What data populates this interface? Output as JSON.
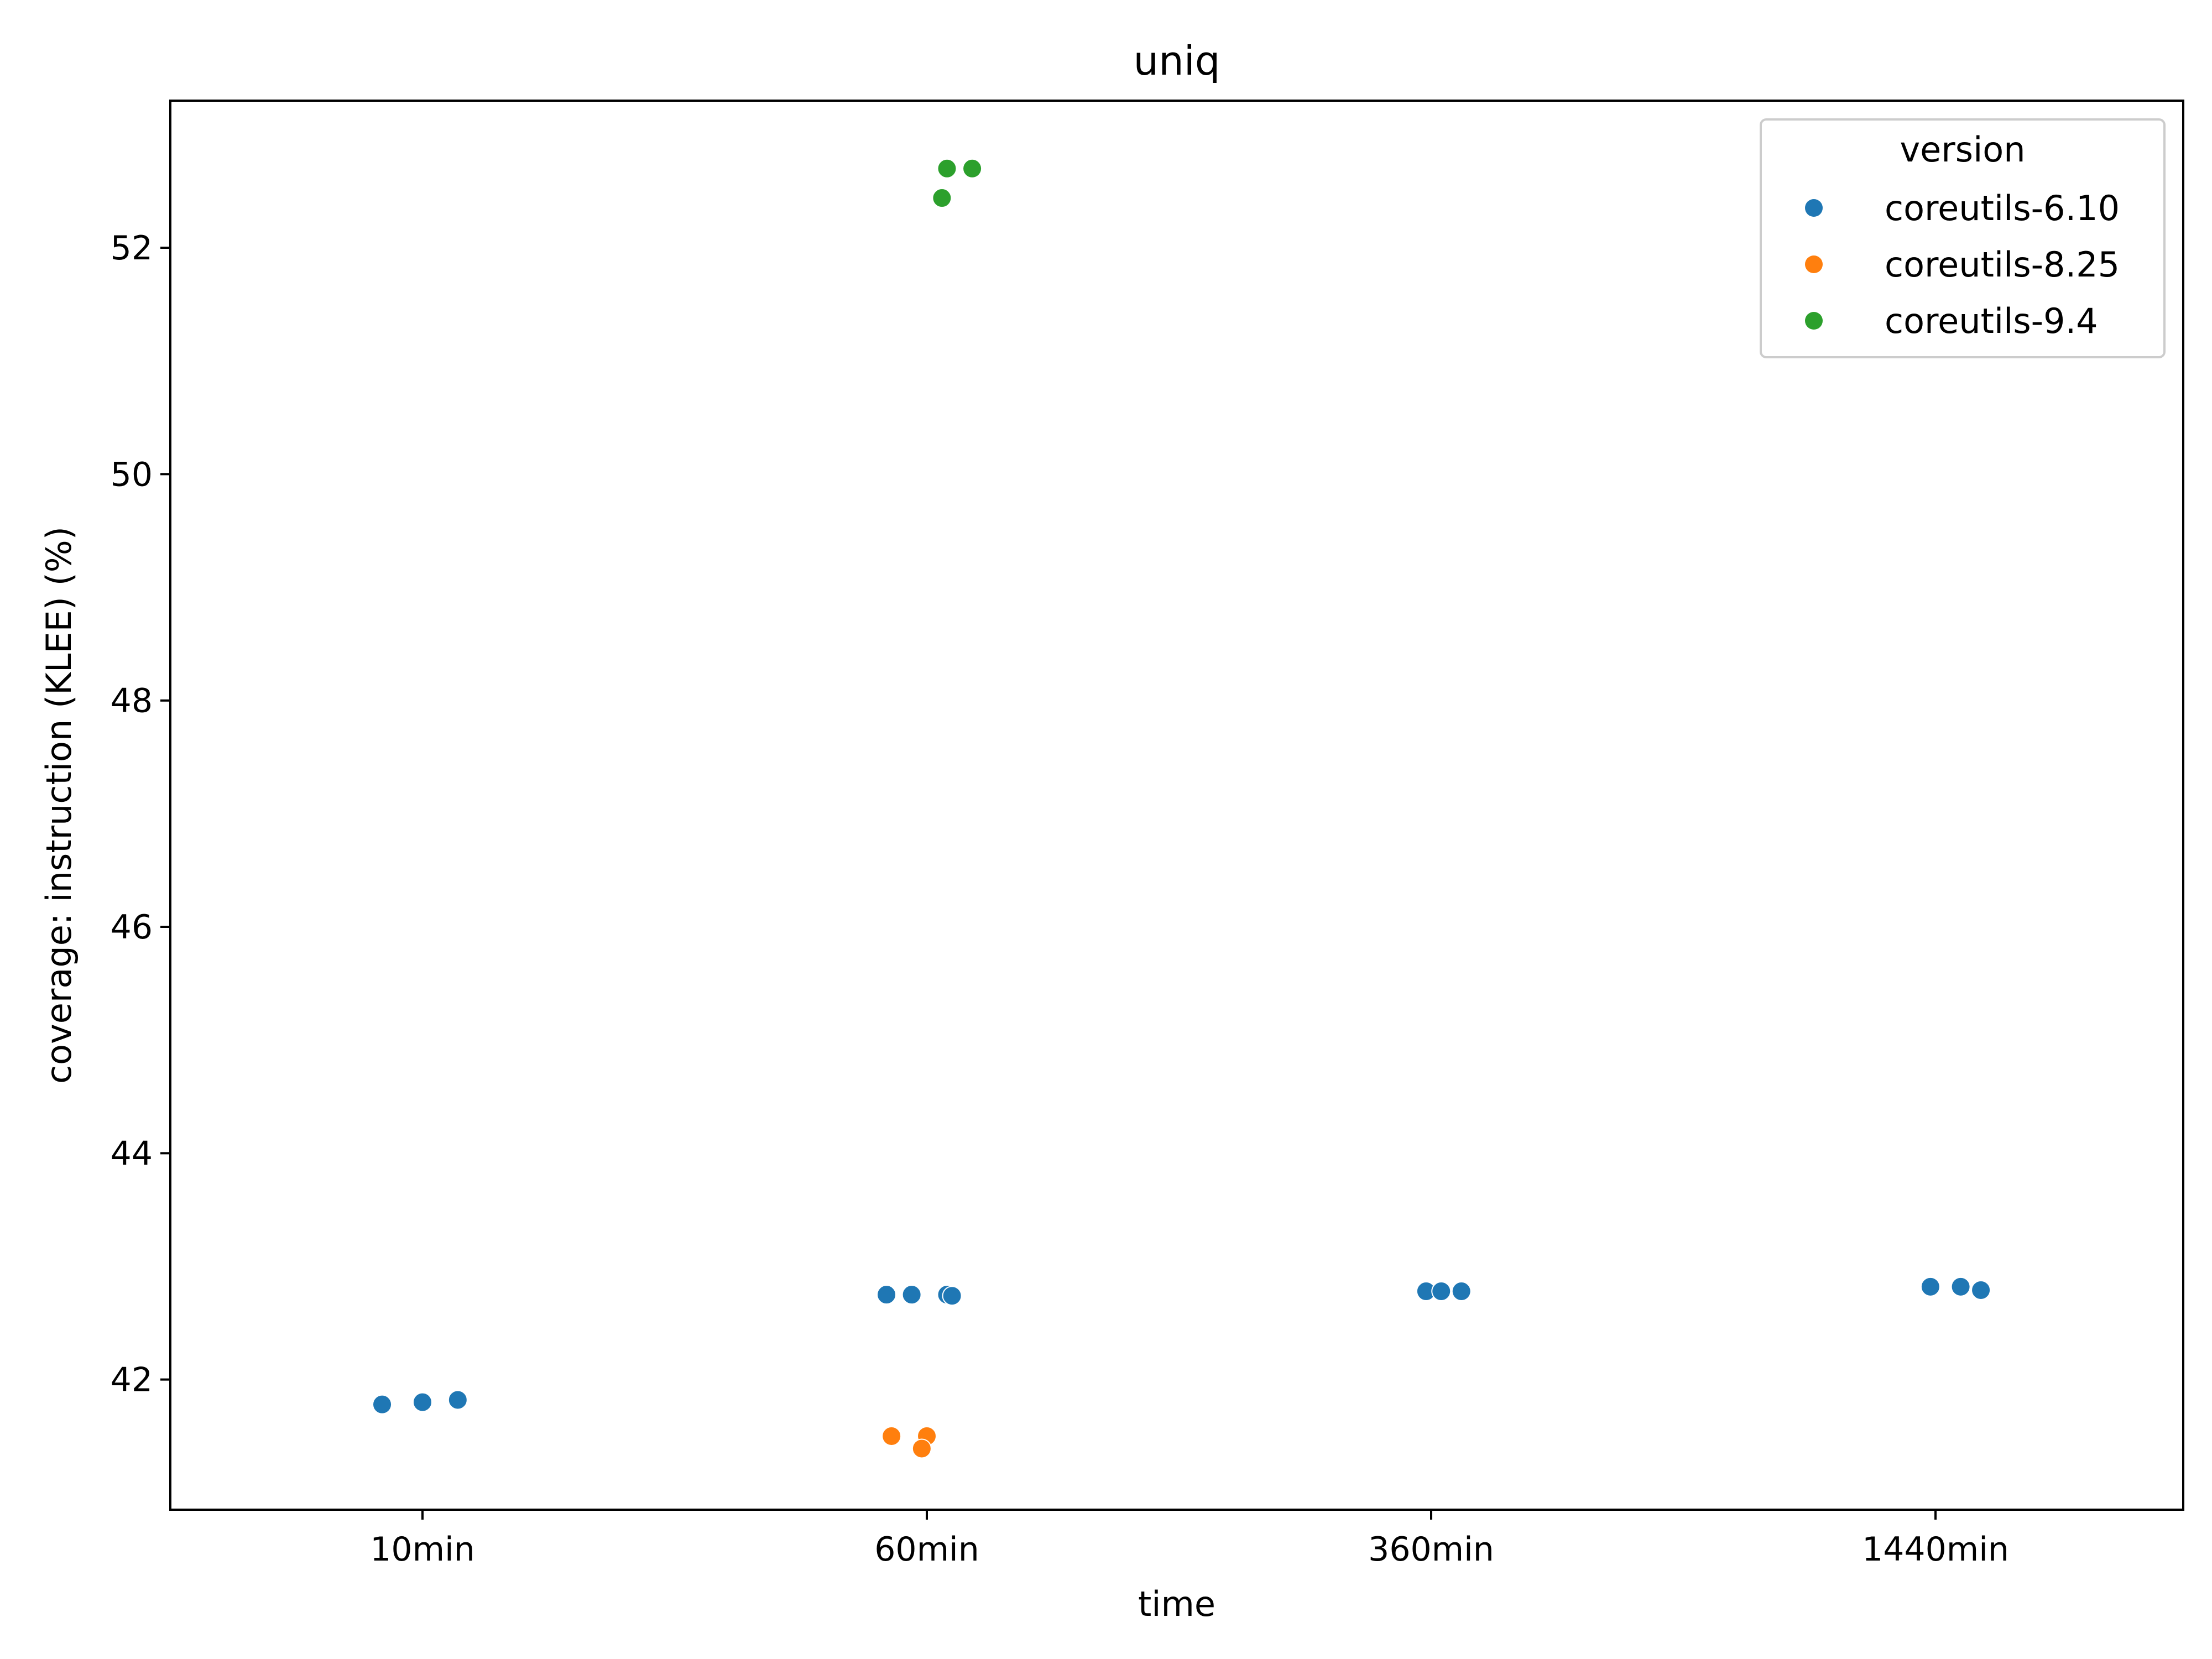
{
  "chart_data": {
    "type": "scatter",
    "title": "uniq",
    "xlabel": "time",
    "ylabel": "coverage: instruction (KLEE) (%)",
    "categories": [
      "10min",
      "60min",
      "360min",
      "1440min"
    ],
    "ylim": [
      40.85,
      53.3
    ],
    "yticks": [
      42,
      44,
      46,
      48,
      50,
      52
    ],
    "grid": false,
    "legend": {
      "title": "version",
      "position": "top-right"
    },
    "series": [
      {
        "name": "coreutils-6.10",
        "color": "#1f77b4",
        "points": [
          {
            "category": "10min",
            "jitter": -0.08,
            "value": 41.78
          },
          {
            "category": "10min",
            "jitter": 0.0,
            "value": 41.8
          },
          {
            "category": "10min",
            "jitter": 0.07,
            "value": 41.82
          },
          {
            "category": "60min",
            "jitter": -0.08,
            "value": 42.75
          },
          {
            "category": "60min",
            "jitter": -0.03,
            "value": 42.75
          },
          {
            "category": "60min",
            "jitter": 0.04,
            "value": 42.75
          },
          {
            "category": "60min",
            "jitter": 0.05,
            "value": 42.74
          },
          {
            "category": "360min",
            "jitter": -0.01,
            "value": 42.78
          },
          {
            "category": "360min",
            "jitter": 0.02,
            "value": 42.78
          },
          {
            "category": "360min",
            "jitter": 0.06,
            "value": 42.78
          },
          {
            "category": "1440min",
            "jitter": -0.01,
            "value": 42.82
          },
          {
            "category": "1440min",
            "jitter": 0.05,
            "value": 42.82
          },
          {
            "category": "1440min",
            "jitter": 0.09,
            "value": 42.79
          }
        ]
      },
      {
        "name": "coreutils-8.25",
        "color": "#ff7f0e",
        "points": [
          {
            "category": "60min",
            "jitter": -0.07,
            "value": 41.5
          },
          {
            "category": "60min",
            "jitter": 0.0,
            "value": 41.5
          },
          {
            "category": "60min",
            "jitter": -0.01,
            "value": 41.39
          }
        ]
      },
      {
        "name": "coreutils-9.4",
        "color": "#2ca02c",
        "points": [
          {
            "category": "60min",
            "jitter": 0.03,
            "value": 52.44
          },
          {
            "category": "60min",
            "jitter": 0.04,
            "value": 52.7
          },
          {
            "category": "60min",
            "jitter": 0.09,
            "value": 52.7
          }
        ]
      }
    ]
  }
}
